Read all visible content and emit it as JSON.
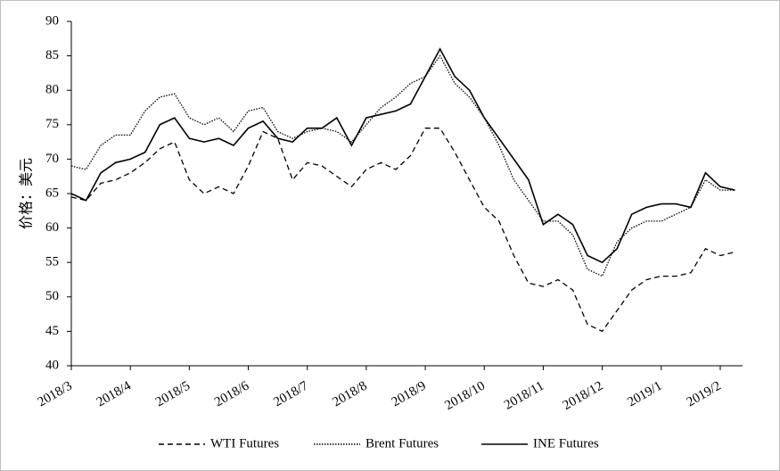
{
  "chart_data": {
    "type": "line",
    "y_label": "价格：美元",
    "categories": [
      "2018/3",
      null,
      null,
      null,
      "2018/4",
      null,
      null,
      null,
      "2018/5",
      null,
      null,
      null,
      "2018/6",
      null,
      null,
      null,
      "2018/7",
      null,
      null,
      null,
      "2018/8",
      null,
      null,
      null,
      "2018/9",
      null,
      null,
      null,
      "2018/10",
      null,
      null,
      null,
      "2018/11",
      null,
      null,
      null,
      "2018/12",
      null,
      null,
      null,
      "2019/1",
      null,
      null,
      null,
      "2019/2",
      null
    ],
    "series": [
      {
        "name": "WTI Futures",
        "color": "#000000",
        "dash": "dashed",
        "values": [
          64.5,
          64,
          66.5,
          67,
          68,
          69.5,
          71.5,
          72.5,
          67,
          65,
          66,
          65,
          69,
          74,
          73,
          67,
          69.5,
          69,
          67.5,
          66,
          68.5,
          69.5,
          68.5,
          70.5,
          74.5,
          74.5,
          71,
          67,
          63,
          61,
          56,
          52,
          51.5,
          52.5,
          51,
          46,
          45,
          48,
          51,
          52.5,
          53,
          53,
          53.5,
          57,
          56,
          56.5
        ]
      },
      {
        "name": "Brent Futures",
        "color": "#000000",
        "dash": "dotted",
        "values": [
          69,
          68.5,
          72,
          73.5,
          73.5,
          77,
          79,
          79.5,
          76,
          75,
          76,
          74,
          77,
          77.5,
          74,
          73,
          74,
          74.5,
          74,
          72.5,
          75,
          77.5,
          79,
          81,
          82,
          85,
          81,
          79,
          76,
          72,
          67,
          64,
          61,
          61,
          59,
          54,
          53,
          58,
          60,
          61,
          61,
          62,
          63,
          67,
          65.5,
          65.5
        ]
      },
      {
        "name": "INE Futures",
        "color": "#000000",
        "dash": "solid",
        "values": [
          65,
          64,
          68,
          69.5,
          70,
          71,
          75,
          76,
          73,
          72.5,
          73,
          72,
          74.5,
          75.5,
          73,
          72.5,
          74.5,
          74.5,
          76,
          72,
          76,
          76.5,
          77,
          78,
          82,
          86,
          82,
          80,
          76,
          73,
          70,
          67,
          60.5,
          62,
          60.5,
          56,
          55,
          57,
          62,
          63,
          63.5,
          63.5,
          63,
          68,
          66,
          65.5
        ]
      }
    ],
    "ylim": [
      40,
      90
    ],
    "yticks": [
      40,
      45,
      50,
      55,
      60,
      65,
      70,
      75,
      80,
      85,
      90
    ],
    "legend": "bottom",
    "grid": false
  }
}
